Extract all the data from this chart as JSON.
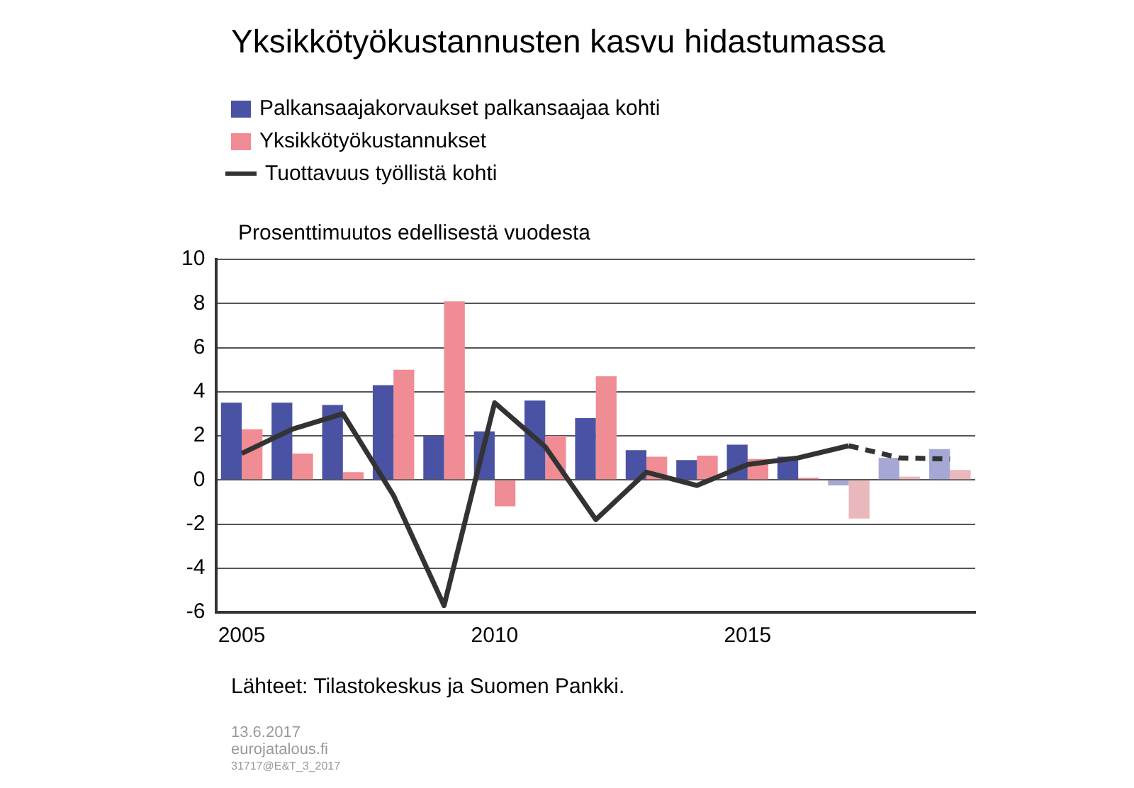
{
  "chart_data": {
    "type": "bar",
    "title": "Yksikkötyökustannusten kasvu hidastumassa",
    "ylabel": "Prosenttimuutos edellisestä vuodesta",
    "categories": [
      "2005",
      null,
      null,
      null,
      null,
      "2010",
      null,
      null,
      null,
      null,
      "2015",
      null,
      null,
      null,
      null
    ],
    "series": [
      {
        "name": "Palkansaajakorvaukset palkansaajaa kohti",
        "color": "#4a52a3",
        "colors": [
          "#4a52a3",
          "#4a52a3",
          "#4a52a3",
          "#4a52a3",
          "#4a52a3",
          "#4a52a3",
          "#4a52a3",
          "#4a52a3",
          "#4a52a3",
          "#4a52a3",
          "#4a52a3",
          "#4a52a3",
          "#a5a8d4",
          "#a5a8d4",
          "#a5a8d4"
        ],
        "values": [
          3.5,
          3.5,
          3.4,
          4.3,
          2.0,
          2.2,
          3.6,
          2.8,
          1.35,
          0.9,
          1.6,
          1.05,
          -0.25,
          1.0,
          1.4
        ]
      },
      {
        "name": "Yksikkötyökustannukset",
        "color": "#f08c94",
        "colors": [
          "#f08c94",
          "#f08c94",
          "#f08c94",
          "#f08c94",
          "#f08c94",
          "#f08c94",
          "#f08c94",
          "#f08c94",
          "#f08c94",
          "#f08c94",
          "#f08c94",
          "#f08c94",
          "#e8b8bc",
          "#e8b8bc",
          "#e8b8bc"
        ],
        "values": [
          2.3,
          1.2,
          0.35,
          5.0,
          8.1,
          -1.2,
          2.0,
          4.7,
          1.05,
          1.1,
          0.95,
          0.1,
          -1.75,
          0.15,
          0.45
        ]
      },
      {
        "name": "Tuottavuus työllistä kohti",
        "type": "line",
        "color": "#333333",
        "line_style": "solid",
        "values": [
          1.2,
          2.3,
          3.0,
          -0.7,
          -5.7,
          3.5,
          1.5,
          -1.8,
          0.35,
          -0.25,
          0.7,
          1.0,
          1.55,
          null,
          null
        ]
      },
      {
        "type": "line",
        "color": "#333333",
        "line_style": "dashed",
        "values": [
          null,
          null,
          null,
          null,
          null,
          null,
          null,
          null,
          null,
          null,
          null,
          null,
          1.55,
          1.0,
          0.95
        ]
      }
    ],
    "ylim": [
      -6,
      10
    ],
    "yticks": [
      -6,
      -4,
      -2,
      0,
      2,
      4,
      6,
      8,
      10
    ],
    "grid": "y",
    "legend": "top left",
    "marker": "none",
    "annotations": [
      "Lähteet: Tilastokeskus ja Suomen Pankki.",
      "13.6.2017",
      "eurojatalous.fi",
      "31717@E&T_3_2017"
    ]
  }
}
